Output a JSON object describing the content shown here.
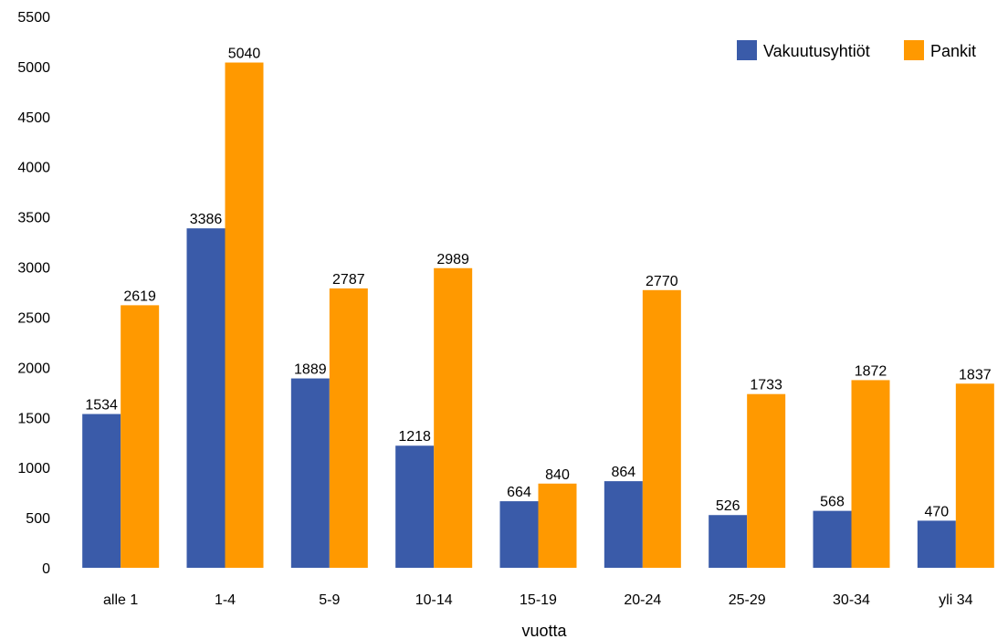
{
  "chart_data": {
    "type": "bar",
    "categories": [
      "alle 1",
      "1-4",
      "5-9",
      "10-14",
      "15-19",
      "20-24",
      "25-29",
      "30-34",
      "yli 34"
    ],
    "series": [
      {
        "name": "Vakuutusyhtiöt",
        "values": [
          1534,
          3386,
          1889,
          1218,
          664,
          864,
          526,
          568,
          470
        ],
        "color": "#3a5ba9"
      },
      {
        "name": "Pankit",
        "values": [
          2619,
          5040,
          2787,
          2989,
          840,
          2770,
          1733,
          1872,
          1837
        ],
        "color": "#ff9900"
      }
    ],
    "title": "",
    "xlabel": "vuotta",
    "ylabel": "",
    "ylim": [
      0,
      5500
    ],
    "yticks": [
      0,
      500,
      1000,
      1500,
      2000,
      2500,
      3000,
      3500,
      4000,
      4500,
      5000,
      5500
    ],
    "grid": false,
    "legend_position": "top-right"
  }
}
